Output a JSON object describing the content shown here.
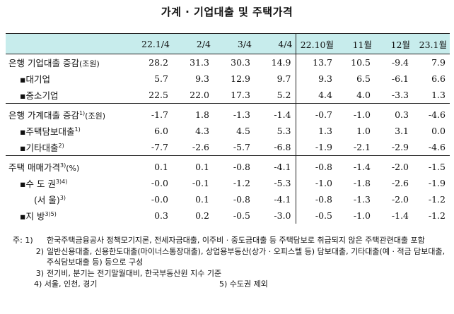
{
  "title": "가계 · 기업대출 및 주택가격",
  "columns": [
    "22.1/4",
    "2/4",
    "3/4",
    "4/4",
    "22.10월",
    "11월",
    "12월",
    "23.1월"
  ],
  "rows": [
    {
      "label": "은행 기업대출 증감",
      "unit": "(조원)",
      "sup": "",
      "indent": 0,
      "values": [
        "28.2",
        "31.3",
        "30.3",
        "14.9",
        "13.7",
        "10.5",
        "-9.4",
        "7.9"
      ]
    },
    {
      "label": "▪대기업",
      "unit": "",
      "sup": "",
      "indent": 1,
      "values": [
        "5.7",
        "9.3",
        "12.9",
        "9.7",
        "9.3",
        "6.5",
        "-6.1",
        "6.6"
      ]
    },
    {
      "label": "▪중소기업",
      "unit": "",
      "sup": "",
      "indent": 1,
      "values": [
        "22.5",
        "22.0",
        "17.3",
        "5.2",
        "4.4",
        "4.0",
        "-3.3",
        "1.3"
      ]
    },
    {
      "label": "은행 가계대출 증감",
      "unit": "(조원)",
      "sup": "1)",
      "indent": 0,
      "values": [
        "-1.7",
        "1.8",
        "-1.3",
        "-1.4",
        "-0.7",
        "-1.0",
        "0.3",
        "-4.6"
      ]
    },
    {
      "label": "▪주택담보대출",
      "unit": "",
      "sup": "1)",
      "indent": 1,
      "values": [
        "6.0",
        "4.3",
        "4.5",
        "5.3",
        "1.3",
        "1.0",
        "3.1",
        "0.0"
      ]
    },
    {
      "label": "▪기타대출",
      "unit": "",
      "sup": "2)",
      "indent": 1,
      "values": [
        "-7.7",
        "-2.6",
        "-5.7",
        "-6.8",
        "-1.9",
        "-2.1",
        "-2.9",
        "-4.6"
      ]
    },
    {
      "label": "주택 매매가격",
      "unit": "(%)",
      "sup": "3)",
      "indent": 0,
      "values": [
        "0.1",
        "0.1",
        "-0.8",
        "-4.1",
        "-0.8",
        "-1.4",
        "-2.0",
        "-1.5"
      ]
    },
    {
      "label": "▪수 도 권",
      "unit": "",
      "sup": "3)4)",
      "indent": 1,
      "values": [
        "-0.0",
        "-0.1",
        "-1.2",
        "-5.3",
        "-1.0",
        "-1.8",
        "-2.6",
        "-1.9"
      ]
    },
    {
      "label": "(서    울)",
      "unit": "",
      "sup": "3)",
      "indent": 2,
      "values": [
        "-0.0",
        "0.1",
        "-0.8",
        "-4.1",
        "-0.8",
        "-1.3",
        "-2.0",
        "-1.2"
      ]
    },
    {
      "label": "▪지      방",
      "unit": "",
      "sup": "3)5)",
      "indent": 1,
      "values": [
        "0.3",
        "0.2",
        "-0.5",
        "-3.0",
        "-0.5",
        "-1.0",
        "-1.4",
        "-1.2"
      ]
    }
  ],
  "notes": {
    "n1_key": "주: 1)",
    "n1": "한국주택금융공사 정책모기지론, 전세자금대출, 이주비 · 중도금대출 등 주택담보로 취급되지 않은 주택관련대출 포함",
    "n2_key": "2)",
    "n2": "일반신용대출, 신용한도대출(마이너스통장대출), 상업용부동산(상가 · 오피스텔 등) 담보대출, 기타대출(예 · 적금 담보대출, 주식담보대출 등) 등으로 구성",
    "n3_key": "3)",
    "n3": "전기비, 분기는 전기말월대비, 한국부동산원 지수 기준",
    "n4": "4) 서울, 인천, 경기",
    "n5": "5) 수도권 제외"
  }
}
